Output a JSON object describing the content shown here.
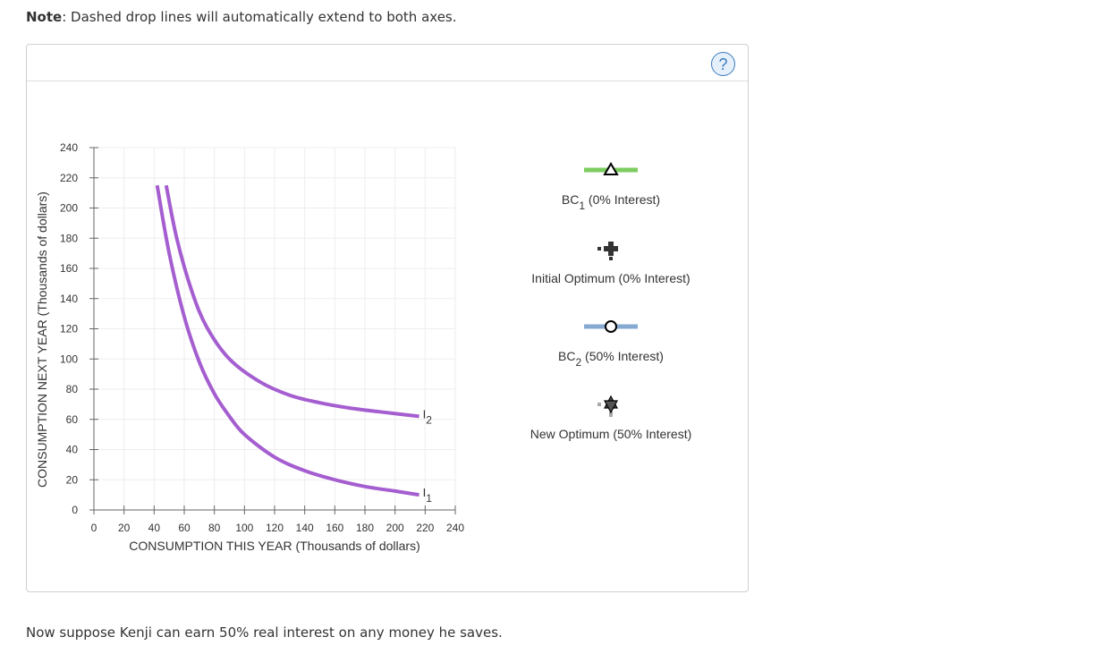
{
  "note": {
    "bold": "Note",
    "text": ": Dashed drop lines will automatically extend to both axes."
  },
  "help": {
    "label": "?"
  },
  "footer": "Now suppose Kenji can earn 50% real interest on any money he saves.",
  "legend": [
    {
      "name": "BC",
      "sub": "1",
      "suffix": "(0% Interest)",
      "line_color": "#7ccc5f",
      "marker": "triangle-icon"
    },
    {
      "name": "Initial Optimum (0% Interest)",
      "line_color": "#333333",
      "marker": "plus-icon"
    },
    {
      "name": "BC",
      "sub": "2",
      "suffix": "(50% Interest)",
      "line_color": "#86a9d1",
      "marker": "circle-icon"
    },
    {
      "name": "New Optimum (50% Interest)",
      "line_color": "#aaaaaa",
      "marker": "star-of-david-icon"
    }
  ],
  "chart_data": {
    "type": "line",
    "xlabel": "CONSUMPTION THIS YEAR (Thousands of dollars)",
    "ylabel": "CONSUMPTION NEXT YEAR (Thousands of dollars)",
    "xlim": [
      0,
      240
    ],
    "ylim": [
      0,
      240
    ],
    "xticks": [
      0,
      20,
      40,
      60,
      80,
      100,
      120,
      140,
      160,
      180,
      200,
      220,
      240
    ],
    "yticks": [
      0,
      20,
      40,
      60,
      80,
      100,
      120,
      140,
      160,
      180,
      200,
      220,
      240
    ],
    "grid": true,
    "curve_color": "#a55ed0",
    "series": [
      {
        "name": "I",
        "sub": "1",
        "points": [
          [
            42,
            215
          ],
          [
            50,
            170
          ],
          [
            60,
            128
          ],
          [
            70,
            98
          ],
          [
            80,
            77
          ],
          [
            90,
            62
          ],
          [
            100,
            50
          ],
          [
            120,
            35
          ],
          [
            140,
            26
          ],
          [
            160,
            20
          ],
          [
            180,
            15.5
          ],
          [
            200,
            12.5
          ],
          [
            216,
            10
          ]
        ]
      },
      {
        "name": "I",
        "sub": "2",
        "points": [
          [
            48,
            215
          ],
          [
            55,
            180
          ],
          [
            65,
            145
          ],
          [
            75,
            121
          ],
          [
            90,
            100
          ],
          [
            110,
            85
          ],
          [
            130,
            76
          ],
          [
            150,
            71
          ],
          [
            170,
            67.5
          ],
          [
            190,
            65
          ],
          [
            216,
            62
          ]
        ]
      }
    ]
  }
}
